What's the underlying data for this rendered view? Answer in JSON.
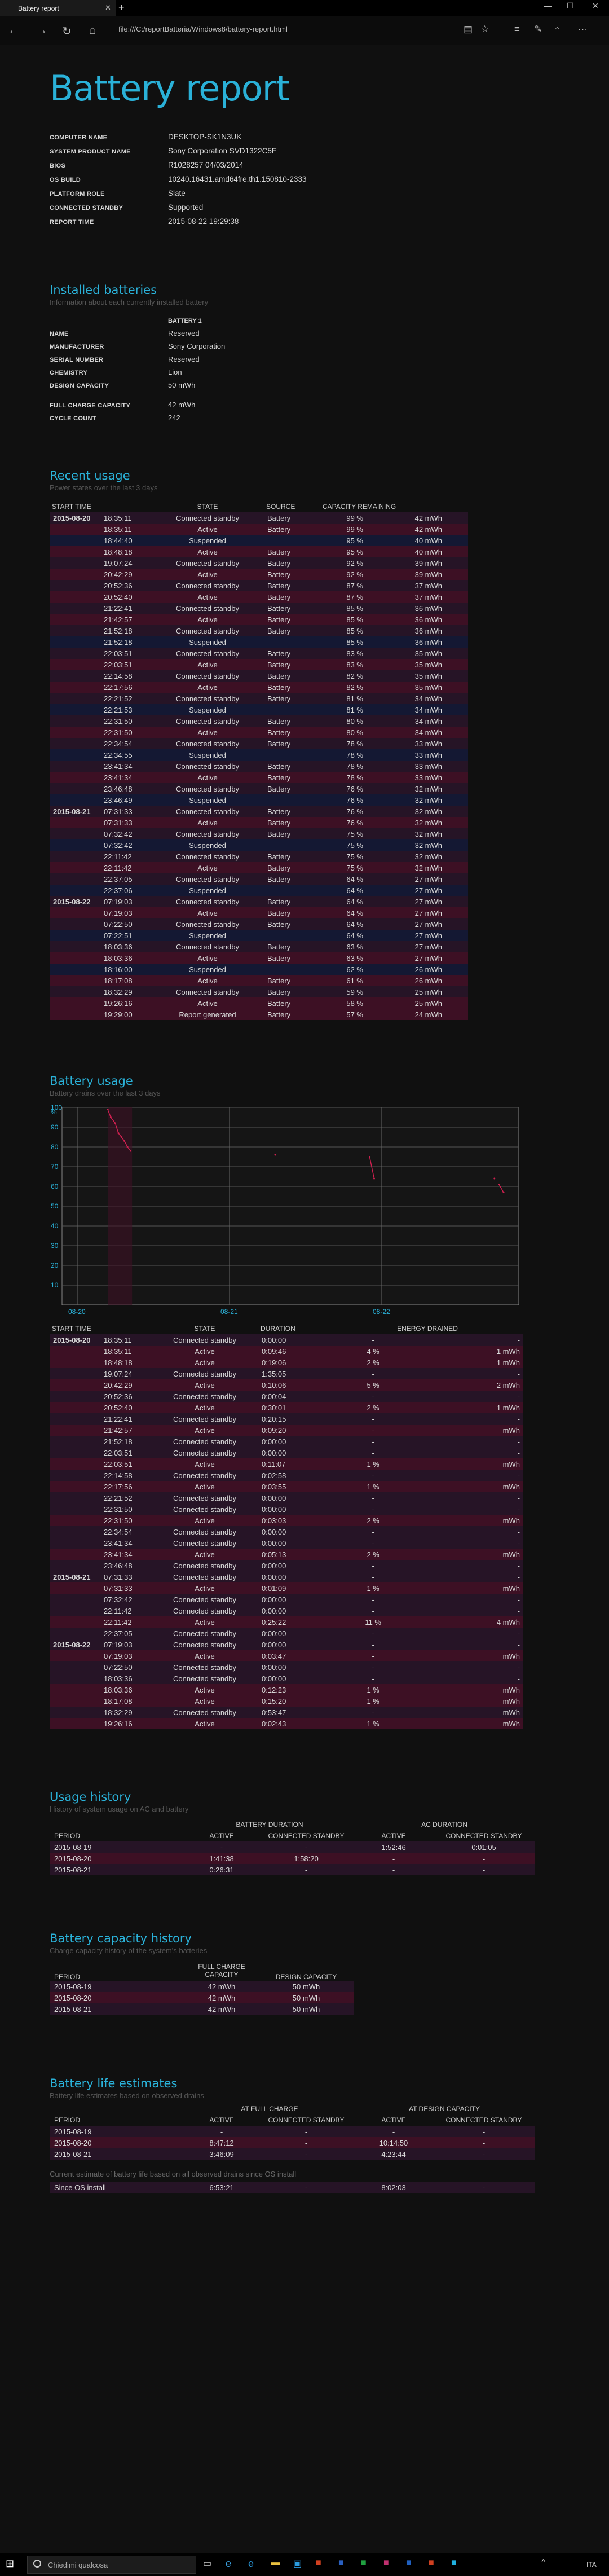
{
  "browser": {
    "tab_title": "Battery report",
    "url": "file:///C:/reportBatteria/Windows8/battery-report.html"
  },
  "title": "Battery report",
  "system": [
    [
      "COMPUTER NAME",
      "DESKTOP-SK1N3UK"
    ],
    [
      "SYSTEM PRODUCT NAME",
      "Sony Corporation SVD1322C5E"
    ],
    [
      "BIOS",
      "R1028257 04/03/2014"
    ],
    [
      "OS BUILD",
      "10240.16431.amd64fre.th1.150810-2333"
    ],
    [
      "PLATFORM ROLE",
      "Slate"
    ],
    [
      "CONNECTED STANDBY",
      "Supported"
    ],
    [
      "REPORT TIME",
      "2015-08-22  19:29:38"
    ]
  ],
  "installed": {
    "title": "Installed batteries",
    "subtitle": "Information about each currently installed battery",
    "header": "BATTERY 1",
    "rows": [
      [
        "NAME",
        "Reserved"
      ],
      [
        "MANUFACTURER",
        "Sony Corporation"
      ],
      [
        "SERIAL NUMBER",
        "Reserved"
      ],
      [
        "CHEMISTRY",
        "Lion"
      ],
      [
        "DESIGN CAPACITY",
        "50 mWh"
      ],
      [
        "",
        ""
      ],
      [
        "FULL CHARGE CAPACITY",
        "42 mWh"
      ],
      [
        "CYCLE COUNT",
        "242"
      ]
    ]
  },
  "recent": {
    "title": "Recent usage",
    "subtitle": "Power states over the last 3 days",
    "headers": [
      "START TIME",
      "STATE",
      "SOURCE",
      "CAPACITY REMAINING"
    ],
    "rows": [
      [
        "2015-08-20",
        "18:35:11",
        "Connected standby",
        "Battery",
        "99 %",
        "42 mWh"
      ],
      [
        "",
        "18:35:11",
        "Active",
        "Battery",
        "99 %",
        "42 mWh"
      ],
      [
        "",
        "18:44:40",
        "Suspended",
        "",
        "95 %",
        "40 mWh"
      ],
      [
        "",
        "18:48:18",
        "Active",
        "Battery",
        "95 %",
        "40 mWh"
      ],
      [
        "",
        "19:07:24",
        "Connected standby",
        "Battery",
        "92 %",
        "39 mWh"
      ],
      [
        "",
        "20:42:29",
        "Active",
        "Battery",
        "92 %",
        "39 mWh"
      ],
      [
        "",
        "20:52:36",
        "Connected standby",
        "Battery",
        "87 %",
        "37 mWh"
      ],
      [
        "",
        "20:52:40",
        "Active",
        "Battery",
        "87 %",
        "37 mWh"
      ],
      [
        "",
        "21:22:41",
        "Connected standby",
        "Battery",
        "85 %",
        "36 mWh"
      ],
      [
        "",
        "21:42:57",
        "Active",
        "Battery",
        "85 %",
        "36 mWh"
      ],
      [
        "",
        "21:52:18",
        "Connected standby",
        "Battery",
        "85 %",
        "36 mWh"
      ],
      [
        "",
        "21:52:18",
        "Suspended",
        "",
        "85 %",
        "36 mWh"
      ],
      [
        "",
        "22:03:51",
        "Connected standby",
        "Battery",
        "83 %",
        "35 mWh"
      ],
      [
        "",
        "22:03:51",
        "Active",
        "Battery",
        "83 %",
        "35 mWh"
      ],
      [
        "",
        "22:14:58",
        "Connected standby",
        "Battery",
        "82 %",
        "35 mWh"
      ],
      [
        "",
        "22:17:56",
        "Active",
        "Battery",
        "82 %",
        "35 mWh"
      ],
      [
        "",
        "22:21:52",
        "Connected standby",
        "Battery",
        "81 %",
        "34 mWh"
      ],
      [
        "",
        "22:21:53",
        "Suspended",
        "",
        "81 %",
        "34 mWh"
      ],
      [
        "",
        "22:31:50",
        "Connected standby",
        "Battery",
        "80 %",
        "34 mWh"
      ],
      [
        "",
        "22:31:50",
        "Active",
        "Battery",
        "80 %",
        "34 mWh"
      ],
      [
        "",
        "22:34:54",
        "Connected standby",
        "Battery",
        "78 %",
        "33 mWh"
      ],
      [
        "",
        "22:34:55",
        "Suspended",
        "",
        "78 %",
        "33 mWh"
      ],
      [
        "",
        "23:41:34",
        "Connected standby",
        "Battery",
        "78 %",
        "33 mWh"
      ],
      [
        "",
        "23:41:34",
        "Active",
        "Battery",
        "78 %",
        "33 mWh"
      ],
      [
        "",
        "23:46:48",
        "Connected standby",
        "Battery",
        "76 %",
        "32 mWh"
      ],
      [
        "",
        "23:46:49",
        "Suspended",
        "",
        "76 %",
        "32 mWh"
      ],
      [
        "2015-08-21",
        "07:31:33",
        "Connected standby",
        "Battery",
        "76 %",
        "32 mWh"
      ],
      [
        "",
        "07:31:33",
        "Active",
        "Battery",
        "76 %",
        "32 mWh"
      ],
      [
        "",
        "07:32:42",
        "Connected standby",
        "Battery",
        "75 %",
        "32 mWh"
      ],
      [
        "",
        "07:32:42",
        "Suspended",
        "",
        "75 %",
        "32 mWh"
      ],
      [
        "",
        "22:11:42",
        "Connected standby",
        "Battery",
        "75 %",
        "32 mWh"
      ],
      [
        "",
        "22:11:42",
        "Active",
        "Battery",
        "75 %",
        "32 mWh"
      ],
      [
        "",
        "22:37:05",
        "Connected standby",
        "Battery",
        "64 %",
        "27 mWh"
      ],
      [
        "",
        "22:37:06",
        "Suspended",
        "",
        "64 %",
        "27 mWh"
      ],
      [
        "2015-08-22",
        "07:19:03",
        "Connected standby",
        "Battery",
        "64 %",
        "27 mWh"
      ],
      [
        "",
        "07:19:03",
        "Active",
        "Battery",
        "64 %",
        "27 mWh"
      ],
      [
        "",
        "07:22:50",
        "Connected standby",
        "Battery",
        "64 %",
        "27 mWh"
      ],
      [
        "",
        "07:22:51",
        "Suspended",
        "",
        "64 %",
        "27 mWh"
      ],
      [
        "",
        "18:03:36",
        "Connected standby",
        "Battery",
        "63 %",
        "27 mWh"
      ],
      [
        "",
        "18:03:36",
        "Active",
        "Battery",
        "63 %",
        "27 mWh"
      ],
      [
        "",
        "18:16:00",
        "Suspended",
        "",
        "62 %",
        "26 mWh"
      ],
      [
        "",
        "18:17:08",
        "Active",
        "Battery",
        "61 %",
        "26 mWh"
      ],
      [
        "",
        "18:32:29",
        "Connected standby",
        "Battery",
        "59 %",
        "25 mWh"
      ],
      [
        "",
        "19:26:16",
        "Active",
        "Battery",
        "58 %",
        "25 mWh"
      ],
      [
        "",
        "19:29:00",
        "Report generated",
        "Battery",
        "57 %",
        "24 mWh"
      ]
    ]
  },
  "usage_chart": {
    "title": "Battery usage",
    "subtitle": "Battery drains over the last 3 days",
    "ylabel": "%",
    "yticks": [
      "100",
      "90",
      "80",
      "70",
      "60",
      "50",
      "40",
      "30",
      "20",
      "10"
    ],
    "xticks": [
      "08-20",
      "08-21",
      "08-22"
    ]
  },
  "chart_data": {
    "type": "line",
    "xlabel": "",
    "ylabel": "%",
    "ylim": [
      0,
      100
    ],
    "x_categories": [
      "08-20",
      "08-21",
      "08-22"
    ],
    "series": [
      {
        "values": [
          [
            0.2,
            99
          ],
          [
            0.22,
            95
          ],
          [
            0.25,
            92
          ],
          [
            0.27,
            87
          ],
          [
            0.29,
            85
          ],
          [
            0.31,
            83
          ],
          [
            0.33,
            80
          ],
          [
            0.35,
            78
          ],
          [
            1.3,
            76
          ],
          [
            1.92,
            75
          ],
          [
            1.95,
            64
          ],
          [
            2.74,
            64
          ],
          [
            2.77,
            61
          ],
          [
            2.8,
            57
          ]
        ]
      }
    ],
    "grid": true
  },
  "drains": {
    "headers": [
      "START TIME",
      "STATE",
      "DURATION",
      "ENERGY DRAINED"
    ],
    "rows": [
      [
        "2015-08-20",
        "18:35:11",
        "Connected standby",
        "0:00:00",
        "-",
        "-"
      ],
      [
        "",
        "18:35:11",
        "Active",
        "0:09:46",
        "4 %",
        "1 mWh"
      ],
      [
        "",
        "18:48:18",
        "Active",
        "0:19:06",
        "2 %",
        "1 mWh"
      ],
      [
        "",
        "19:07:24",
        "Connected standby",
        "1:35:05",
        "-",
        "-"
      ],
      [
        "",
        "20:42:29",
        "Active",
        "0:10:06",
        "5 %",
        "2 mWh"
      ],
      [
        "",
        "20:52:36",
        "Connected standby",
        "0:00:04",
        "-",
        "-"
      ],
      [
        "",
        "20:52:40",
        "Active",
        "0:30:01",
        "2 %",
        "1 mWh"
      ],
      [
        "",
        "21:22:41",
        "Connected standby",
        "0:20:15",
        "-",
        "-"
      ],
      [
        "",
        "21:42:57",
        "Active",
        "0:09:20",
        "-",
        "mWh"
      ],
      [
        "",
        "21:52:18",
        "Connected standby",
        "0:00:00",
        "-",
        "-"
      ],
      [
        "",
        "22:03:51",
        "Connected standby",
        "0:00:00",
        "-",
        "-"
      ],
      [
        "",
        "22:03:51",
        "Active",
        "0:11:07",
        "1 %",
        "mWh"
      ],
      [
        "",
        "22:14:58",
        "Connected standby",
        "0:02:58",
        "-",
        "-"
      ],
      [
        "",
        "22:17:56",
        "Active",
        "0:03:55",
        "1 %",
        "mWh"
      ],
      [
        "",
        "22:21:52",
        "Connected standby",
        "0:00:00",
        "-",
        "-"
      ],
      [
        "",
        "22:31:50",
        "Connected standby",
        "0:00:00",
        "-",
        "-"
      ],
      [
        "",
        "22:31:50",
        "Active",
        "0:03:03",
        "2 %",
        "mWh"
      ],
      [
        "",
        "22:34:54",
        "Connected standby",
        "0:00:00",
        "-",
        "-"
      ],
      [
        "",
        "23:41:34",
        "Connected standby",
        "0:00:00",
        "-",
        "-"
      ],
      [
        "",
        "23:41:34",
        "Active",
        "0:05:13",
        "2 %",
        "mWh"
      ],
      [
        "",
        "23:46:48",
        "Connected standby",
        "0:00:00",
        "-",
        "-"
      ],
      [
        "2015-08-21",
        "07:31:33",
        "Connected standby",
        "0:00:00",
        "-",
        "-"
      ],
      [
        "",
        "07:31:33",
        "Active",
        "0:01:09",
        "1 %",
        "mWh"
      ],
      [
        "",
        "07:32:42",
        "Connected standby",
        "0:00:00",
        "-",
        "-"
      ],
      [
        "",
        "22:11:42",
        "Connected standby",
        "0:00:00",
        "-",
        "-"
      ],
      [
        "",
        "22:11:42",
        "Active",
        "0:25:22",
        "11 %",
        "4 mWh"
      ],
      [
        "",
        "22:37:05",
        "Connected standby",
        "0:00:00",
        "-",
        "-"
      ],
      [
        "2015-08-22",
        "07:19:03",
        "Connected standby",
        "0:00:00",
        "-",
        "-"
      ],
      [
        "",
        "07:19:03",
        "Active",
        "0:03:47",
        "-",
        "mWh"
      ],
      [
        "",
        "07:22:50",
        "Connected standby",
        "0:00:00",
        "-",
        "-"
      ],
      [
        "",
        "18:03:36",
        "Connected standby",
        "0:00:00",
        "-",
        "-"
      ],
      [
        "",
        "18:03:36",
        "Active",
        "0:12:23",
        "1 %",
        "mWh"
      ],
      [
        "",
        "18:17:08",
        "Active",
        "0:15:20",
        "1 %",
        "mWh"
      ],
      [
        "",
        "18:32:29",
        "Connected standby",
        "0:53:47",
        "-",
        "mWh"
      ],
      [
        "",
        "19:26:16",
        "Active",
        "0:02:43",
        "1 %",
        "mWh"
      ]
    ]
  },
  "history": {
    "title": "Usage history",
    "subtitle": "History of system usage on AC and battery",
    "group1": "BATTERY DURATION",
    "group2": "AC DURATION",
    "headers": [
      "PERIOD",
      "ACTIVE",
      "CONNECTED STANDBY",
      "ACTIVE",
      "CONNECTED STANDBY"
    ],
    "rows": [
      [
        "2015-08-19",
        "-",
        "-",
        "1:52:46",
        "0:01:05"
      ],
      [
        "2015-08-20",
        "1:41:38",
        "1:58:20",
        "-",
        "-"
      ],
      [
        "2015-08-21",
        "0:26:31",
        "-",
        "-",
        "-"
      ]
    ]
  },
  "capacity": {
    "title": "Battery capacity history",
    "subtitle": "Charge capacity history of the system's batteries",
    "headers": [
      "PERIOD",
      "FULL CHARGE CAPACITY",
      "DESIGN CAPACITY"
    ],
    "rows": [
      [
        "2015-08-19",
        "42 mWh",
        "50 mWh"
      ],
      [
        "2015-08-20",
        "42 mWh",
        "50 mWh"
      ],
      [
        "2015-08-21",
        "42 mWh",
        "50 mWh"
      ]
    ]
  },
  "estimates": {
    "title": "Battery life estimates",
    "subtitle": "Battery life estimates based on observed drains",
    "group1": "AT FULL CHARGE",
    "group2": "AT DESIGN CAPACITY",
    "headers": [
      "PERIOD",
      "ACTIVE",
      "CONNECTED STANDBY",
      "ACTIVE",
      "CONNECTED STANDBY"
    ],
    "rows": [
      [
        "2015-08-19",
        "-",
        "-",
        "-",
        "-"
      ],
      [
        "2015-08-20",
        "8:47:12",
        "-",
        "10:14:50",
        "-"
      ],
      [
        "2015-08-21",
        "3:46:09",
        "-",
        "4:23:44",
        "-"
      ]
    ],
    "note": "Current estimate of battery life based on all observed drains since OS install",
    "since": [
      "Since OS install",
      "6:53:21",
      "-",
      "8:02:03",
      "-"
    ]
  },
  "taskbar": {
    "search": "Chiedimi qualcosa",
    "lang": "ITA"
  }
}
